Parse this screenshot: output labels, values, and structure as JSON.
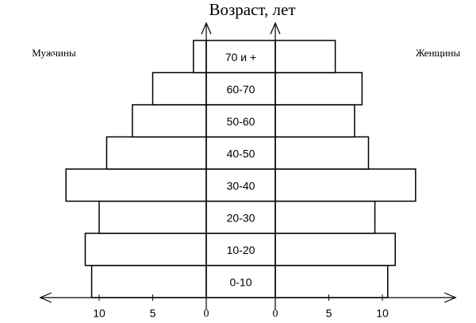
{
  "chart_data": {
    "type": "pyramid",
    "title": "Возраст, лет",
    "categories": [
      "0-10",
      "10-20",
      "20-30",
      "30-40",
      "40-50",
      "50-60",
      "60-70",
      "70 и +"
    ],
    "series": [
      {
        "name": "Мужчины",
        "color": "#ffffff",
        "values": [
          10.7,
          11.3,
          10.0,
          13.1,
          9.3,
          6.9,
          5.0,
          1.2
        ]
      },
      {
        "name": "Женщины",
        "color": "#ffffff",
        "values": [
          10.5,
          11.2,
          9.3,
          13.1,
          8.7,
          7.4,
          8.1,
          5.6
        ]
      }
    ],
    "xlim": [
      0,
      15.5
    ],
    "xticks": [
      0,
      5,
      10
    ]
  }
}
